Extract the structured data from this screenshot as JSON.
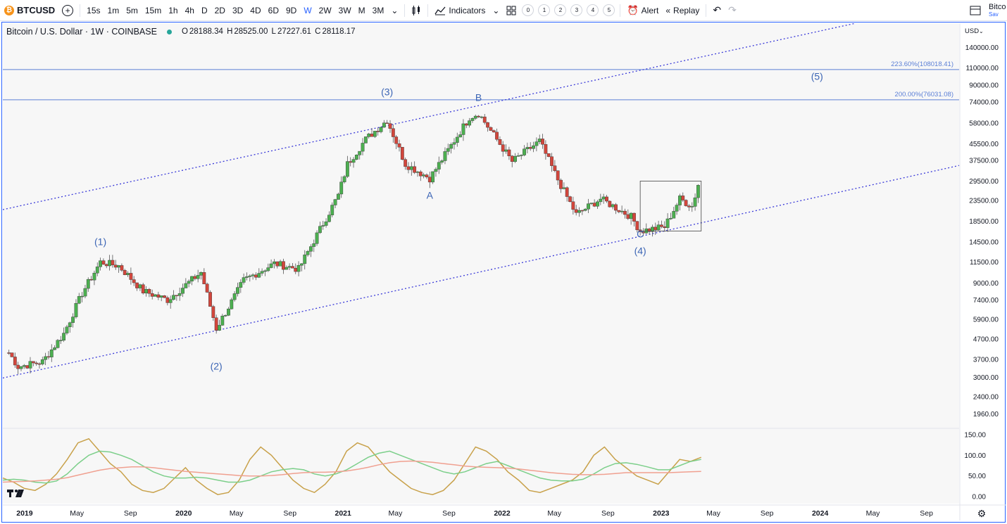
{
  "toolbar": {
    "symbol": "BTCUSD",
    "intervals": [
      "15s",
      "1m",
      "5m",
      "15m",
      "1h",
      "4h",
      "D",
      "2D",
      "3D",
      "4D",
      "6D",
      "9D",
      "W",
      "2W",
      "3W",
      "M",
      "3M"
    ],
    "active_interval": "W",
    "indicators_label": "Indicators",
    "layout_numbers": [
      "0",
      "1",
      "2",
      "3",
      "4",
      "5"
    ],
    "alert_label": "Alert",
    "replay_label": "Replay",
    "save_title": "Bitco",
    "save_sub": "Sav"
  },
  "legend": {
    "title": "Bitcoin / U.S. Dollar · 1W · COINBASE",
    "o": "28188.34",
    "h": "28525.00",
    "l": "27227.61",
    "c": "28118.17"
  },
  "colors": {
    "up": "#4caf50",
    "down": "#d2463c",
    "wave_label": "#3c65b5",
    "channel": "#3b3bd9",
    "fib": "#5b7fd6",
    "osc_fast": "#c8a14a",
    "osc_mid": "#7ccf8a",
    "osc_slow": "#f0a090"
  },
  "chart_data": {
    "type": "candlestick",
    "symbol": "BTCUSD",
    "timeframe": "1W",
    "exchange": "COINBASE",
    "y_scale": "log",
    "ylim": [
      1700,
      175000
    ],
    "y_axis_currency": "USD",
    "x_axis_ticks": [
      "2019",
      "May",
      "Sep",
      "2020",
      "May",
      "Sep",
      "2021",
      "May",
      "Sep",
      "2022",
      "May",
      "Sep",
      "2023",
      "May",
      "Sep",
      "2024",
      "May",
      "Sep"
    ],
    "y_axis_ticks": [
      "140000.00",
      "110000.00",
      "90000.00",
      "74000.00",
      "58000.00",
      "45500.00",
      "37500.00",
      "29500.00",
      "23500.00",
      "18500.00",
      "14500.00",
      "11500.00",
      "9000.00",
      "7400.00",
      "5900.00",
      "4700.00",
      "3700.00",
      "3000.00",
      "2400.00",
      "1960.00"
    ],
    "price_anchors": [
      {
        "date": "2018-11-26",
        "price": 4000
      },
      {
        "date": "2018-12-17",
        "price": 3400
      },
      {
        "date": "2019-02-11",
        "price": 3600
      },
      {
        "date": "2019-04-01",
        "price": 5000
      },
      {
        "date": "2019-05-13",
        "price": 8000
      },
      {
        "date": "2019-06-24",
        "price": 11500
      },
      {
        "date": "2019-08-05",
        "price": 11000
      },
      {
        "date": "2019-09-30",
        "price": 8200
      },
      {
        "date": "2019-11-25",
        "price": 7400
      },
      {
        "date": "2020-02-10",
        "price": 10200
      },
      {
        "date": "2020-03-16",
        "price": 5300
      },
      {
        "date": "2020-05-18",
        "price": 9300
      },
      {
        "date": "2020-07-27",
        "price": 11300
      },
      {
        "date": "2020-09-21",
        "price": 10600
      },
      {
        "date": "2020-12-21",
        "price": 25000
      },
      {
        "date": "2021-01-11",
        "price": 36000
      },
      {
        "date": "2021-02-22",
        "price": 48000
      },
      {
        "date": "2021-04-12",
        "price": 60000
      },
      {
        "date": "2021-05-24",
        "price": 36000
      },
      {
        "date": "2021-07-19",
        "price": 30500
      },
      {
        "date": "2021-10-18",
        "price": 62000
      },
      {
        "date": "2021-11-08",
        "price": 65000
      },
      {
        "date": "2022-01-24",
        "price": 37000
      },
      {
        "date": "2022-03-28",
        "price": 47000
      },
      {
        "date": "2022-05-09",
        "price": 30000
      },
      {
        "date": "2022-06-20",
        "price": 20000
      },
      {
        "date": "2022-08-15",
        "price": 24000
      },
      {
        "date": "2022-10-24",
        "price": 19500
      },
      {
        "date": "2022-11-14",
        "price": 16500
      },
      {
        "date": "2023-01-09",
        "price": 17300
      },
      {
        "date": "2023-02-13",
        "price": 24000
      },
      {
        "date": "2023-03-13",
        "price": 22000
      },
      {
        "date": "2023-03-27",
        "price": 28100
      }
    ],
    "wave_labels": [
      {
        "text": "(1)",
        "date": "2019-06-24",
        "price": 14000
      },
      {
        "text": "(2)",
        "date": "2020-03-16",
        "price": 3280
      },
      {
        "text": "(3)",
        "date": "2021-04-12",
        "price": 80000
      },
      {
        "text": "A",
        "date": "2021-07-19",
        "price": 24000
      },
      {
        "text": "B",
        "date": "2021-11-08",
        "price": 75000
      },
      {
        "text": "C",
        "date": "2022-11-14",
        "price": 15300
      },
      {
        "text": "(4)",
        "date": "2022-11-14",
        "price": 12600
      },
      {
        "text": "(5)",
        "date": "2023-12-25",
        "price": 96000
      }
    ],
    "fib_levels": [
      {
        "label": "223.60%(108018.41)",
        "price": 108018.41
      },
      {
        "label": "200.00%(76031.08)",
        "price": 76031.08
      }
    ],
    "channel_lines": [
      {
        "from": {
          "date": "2018-12-17",
          "price": 22000
        },
        "to": {
          "date": "2021-11-08",
          "price": 71000
        }
      },
      {
        "from": {
          "date": "2018-12-17",
          "price": 3100
        },
        "to": {
          "date": "2022-11-14",
          "price": 15500
        }
      }
    ],
    "box": {
      "from": {
        "date": "2022-11-14",
        "price": 29500
      },
      "to": {
        "date": "2023-04-03",
        "price": 16500
      }
    },
    "oscillator": {
      "ylim": [
        -10,
        160
      ],
      "y_axis_ticks": [
        "150.00",
        "100.00",
        "50.00",
        "0.00"
      ],
      "series": [
        {
          "values": [
            45,
            35,
            20,
            15,
            30,
            55,
            90,
            130,
            140,
            110,
            80,
            60,
            30,
            15,
            10,
            20,
            45,
            70,
            40,
            20,
            5,
            10,
            40,
            90,
            120,
            100,
            70,
            40,
            20,
            10,
            30,
            60,
            110,
            130,
            120,
            90,
            60,
            40,
            20,
            10,
            5,
            15,
            40,
            80,
            120,
            110,
            90,
            60,
            40,
            15,
            10,
            20,
            30,
            40,
            60,
            100,
            120,
            90,
            70,
            50,
            40,
            30,
            60,
            90,
            85,
            95
          ]
        },
        {
          "values": [
            40,
            42,
            40,
            35,
            33,
            38,
            55,
            80,
            100,
            110,
            108,
            100,
            90,
            75,
            60,
            50,
            45,
            45,
            47,
            45,
            40,
            35,
            35,
            40,
            50,
            60,
            65,
            68,
            65,
            55,
            50,
            55,
            65,
            80,
            95,
            105,
            110,
            100,
            90,
            80,
            70,
            60,
            55,
            60,
            70,
            80,
            85,
            75,
            65,
            55,
            45,
            40,
            38,
            38,
            42,
            55,
            70,
            80,
            82,
            78,
            72,
            65,
            65,
            75,
            85,
            90
          ]
        },
        {
          "values": [
            35,
            36,
            37,
            38,
            40,
            42,
            46,
            52,
            58,
            64,
            68,
            70,
            72,
            72,
            70,
            67,
            64,
            61,
            59,
            57,
            55,
            53,
            51,
            50,
            50,
            51,
            53,
            56,
            58,
            59,
            59,
            60,
            62,
            66,
            71,
            77,
            82,
            85,
            86,
            85,
            83,
            80,
            77,
            74,
            72,
            71,
            70,
            69,
            67,
            64,
            61,
            58,
            56,
            54,
            53,
            53,
            54,
            56,
            58,
            58,
            58,
            58,
            58,
            59,
            60,
            61
          ]
        }
      ]
    }
  }
}
